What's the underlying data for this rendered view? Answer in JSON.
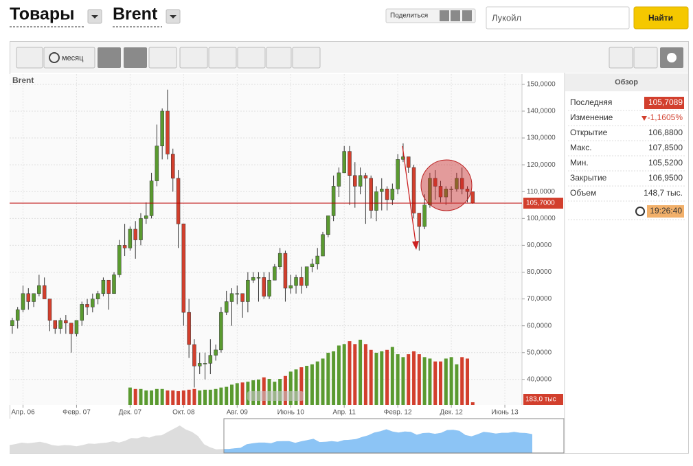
{
  "header": {
    "market": "Товары",
    "instrument": "Brent",
    "share": "Поделиться",
    "search_placeholder": "Лукойл",
    "search_button": "Найти"
  },
  "toolbar": {
    "period": "месяц"
  },
  "chart_data": {
    "type": "candlestick",
    "title": "Brent",
    "x": [
      1,
      2,
      3,
      4,
      5,
      6,
      7,
      8,
      9,
      10,
      11,
      12,
      13,
      14,
      15,
      16,
      17,
      18,
      19,
      20,
      21,
      22,
      23,
      24,
      25,
      26,
      27,
      28,
      29,
      30,
      31,
      32,
      33,
      34,
      35,
      36,
      37,
      38,
      39,
      40,
      41,
      42,
      43,
      44,
      45,
      46,
      47,
      48,
      49,
      50,
      51,
      52,
      53,
      54,
      55,
      56,
      57,
      58,
      59,
      60,
      61,
      62,
      63,
      64,
      65,
      66,
      67,
      68,
      69,
      70,
      71,
      72,
      73,
      74,
      75,
      76,
      77,
      78,
      79,
      80,
      81,
      82,
      83,
      84,
      85,
      86,
      87
    ],
    "open": [
      60,
      62,
      66,
      72,
      69,
      72,
      75,
      70,
      62,
      59,
      62,
      61,
      57,
      62,
      68,
      67,
      70,
      72,
      77,
      72,
      79,
      90,
      89,
      96,
      92,
      100,
      101,
      114,
      127,
      140,
      124,
      115,
      98,
      65,
      53,
      45,
      46,
      46,
      49,
      51,
      65,
      69,
      72,
      72,
      69,
      77,
      78,
      78,
      71,
      77,
      82,
      87,
      74,
      75,
      78,
      75,
      82,
      83,
      86,
      94,
      101,
      112,
      117,
      125,
      116,
      112,
      116,
      115,
      103,
      110,
      111,
      107,
      111,
      122,
      123,
      119,
      102,
      97,
      105,
      115,
      112,
      108,
      111,
      111,
      115,
      111,
      110
    ],
    "high": [
      63,
      67,
      75,
      74,
      72,
      79,
      78,
      70,
      62,
      63,
      64,
      61,
      62,
      69,
      70,
      72,
      73,
      78,
      77,
      80,
      92,
      98,
      97,
      99,
      102,
      106,
      117,
      135,
      141,
      148,
      126,
      118,
      98,
      70,
      55,
      50,
      50,
      55,
      53,
      67,
      73,
      74,
      75,
      72,
      80,
      80,
      80,
      80,
      80,
      83,
      89,
      88,
      79,
      79,
      82,
      82,
      85,
      89,
      95,
      101,
      116,
      119,
      127,
      127,
      121,
      119,
      117,
      116,
      112,
      115,
      112,
      113,
      124,
      128,
      123,
      120,
      102,
      109,
      117,
      118,
      114,
      112,
      112,
      117,
      119,
      112,
      110
    ],
    "low": [
      57,
      59,
      65,
      66,
      67,
      71,
      70,
      58,
      57,
      57,
      57,
      50,
      56,
      60,
      64,
      65,
      68,
      71,
      66,
      72,
      78,
      86,
      88,
      85,
      90,
      98,
      100,
      112,
      122,
      122,
      110,
      89,
      60,
      48,
      37,
      42,
      40,
      42,
      47,
      50,
      64,
      60,
      68,
      63,
      65,
      76,
      69,
      70,
      70,
      77,
      81,
      69,
      72,
      72,
      72,
      74,
      80,
      81,
      86,
      93,
      99,
      108,
      117,
      105,
      104,
      109,
      98,
      100,
      99,
      103,
      103,
      105,
      109,
      121,
      117,
      100,
      88,
      96,
      104,
      107,
      106,
      105,
      106,
      110,
      109,
      106,
      105.5
    ],
    "close": [
      62,
      66,
      72,
      69,
      72,
      75,
      70,
      62,
      59,
      62,
      61,
      57,
      62,
      68,
      67,
      70,
      72,
      77,
      72,
      79,
      90,
      89,
      96,
      92,
      100,
      101,
      114,
      127,
      140,
      124,
      115,
      98,
      65,
      53,
      45,
      46,
      46,
      49,
      51,
      65,
      69,
      72,
      72,
      69,
      77,
      78,
      78,
      71,
      77,
      82,
      87,
      74,
      75,
      78,
      75,
      82,
      83,
      86,
      94,
      101,
      112,
      117,
      125,
      116,
      112,
      116,
      115,
      103,
      110,
      111,
      107,
      111,
      122,
      123,
      119,
      102,
      97,
      105,
      115,
      112,
      108,
      111,
      111,
      115,
      111,
      110,
      105.7
    ],
    "volume": [
      null,
      null,
      null,
      null,
      null,
      null,
      null,
      null,
      null,
      null,
      null,
      null,
      null,
      null,
      null,
      null,
      null,
      null,
      null,
      null,
      null,
      null,
      1200,
      1100,
      1100,
      1000,
      1000,
      1100,
      1100,
      1000,
      1000,
      950,
      1000,
      1050,
      1100,
      1000,
      1050,
      1050,
      1100,
      1200,
      1250,
      1400,
      1500,
      1550,
      1600,
      1700,
      1750,
      1900,
      1800,
      1600,
      1800,
      2000,
      2300,
      2450,
      2600,
      2700,
      2800,
      3000,
      3200,
      3600,
      3700,
      4100,
      4200,
      4400,
      4200,
      4500,
      4200,
      3800,
      3600,
      3700,
      3800,
      4000,
      3500,
      3300,
      3500,
      3700,
      3500,
      3300,
      3200,
      3000,
      3000,
      3200,
      3300,
      2800,
      3300,
      3200,
      183
    ],
    "volume_last_label": "183,0 тыс",
    "last_price": 105.7,
    "last_price_label": "105,7000",
    "up_color": "#5a9a30",
    "down_color": "#d23f2d",
    "xlim": [
      0.5,
      96.2
    ],
    "xticks": [
      {
        "value": 3,
        "label": "Апр. 06"
      },
      {
        "value": 13,
        "label": "Февр. 07"
      },
      {
        "value": 23,
        "label": "Дек. 07"
      },
      {
        "value": 33,
        "label": "Окт. 08"
      },
      {
        "value": 43,
        "label": "Авг. 09"
      },
      {
        "value": 53,
        "label": "Июнь 10"
      },
      {
        "value": 63,
        "label": "Апр. 11"
      },
      {
        "value": 73,
        "label": "Февр. 12"
      },
      {
        "value": 83,
        "label": "Дек. 12"
      },
      {
        "value": 93,
        "label": "Июнь 13"
      }
    ],
    "ylim": [
      30.5,
      153.8
    ],
    "yticks": [
      {
        "value": 40,
        "label": "40,0000"
      },
      {
        "value": 50,
        "label": "50,0000"
      },
      {
        "value": 60,
        "label": "60,0000"
      },
      {
        "value": 70,
        "label": "70,0000"
      },
      {
        "value": 80,
        "label": "80,0000"
      },
      {
        "value": 90,
        "label": "90,0000"
      },
      {
        "value": 100,
        "label": "100,0000"
      },
      {
        "value": 110,
        "label": "110,0000"
      },
      {
        "value": 120,
        "label": "120,0000"
      },
      {
        "value": 130,
        "label": "130,0000"
      },
      {
        "value": 140,
        "label": "140,0000"
      },
      {
        "value": 150,
        "label": "150,0000"
      }
    ],
    "grid": true
  },
  "overview": {
    "title": "Обзор",
    "rows": [
      {
        "label": "Последняя",
        "value": "105,7089"
      },
      {
        "label": "Изменение",
        "value": "-1,1605%"
      },
      {
        "label": "Открытие",
        "value": "106,8800"
      },
      {
        "label": "Макс.",
        "value": "107,8500"
      },
      {
        "label": "Мин.",
        "value": "105,5200"
      },
      {
        "label": "Закрытие",
        "value": "106,9500"
      },
      {
        "label": "Объем",
        "value": "148,7 тыс."
      }
    ],
    "time": "19:26:40"
  }
}
